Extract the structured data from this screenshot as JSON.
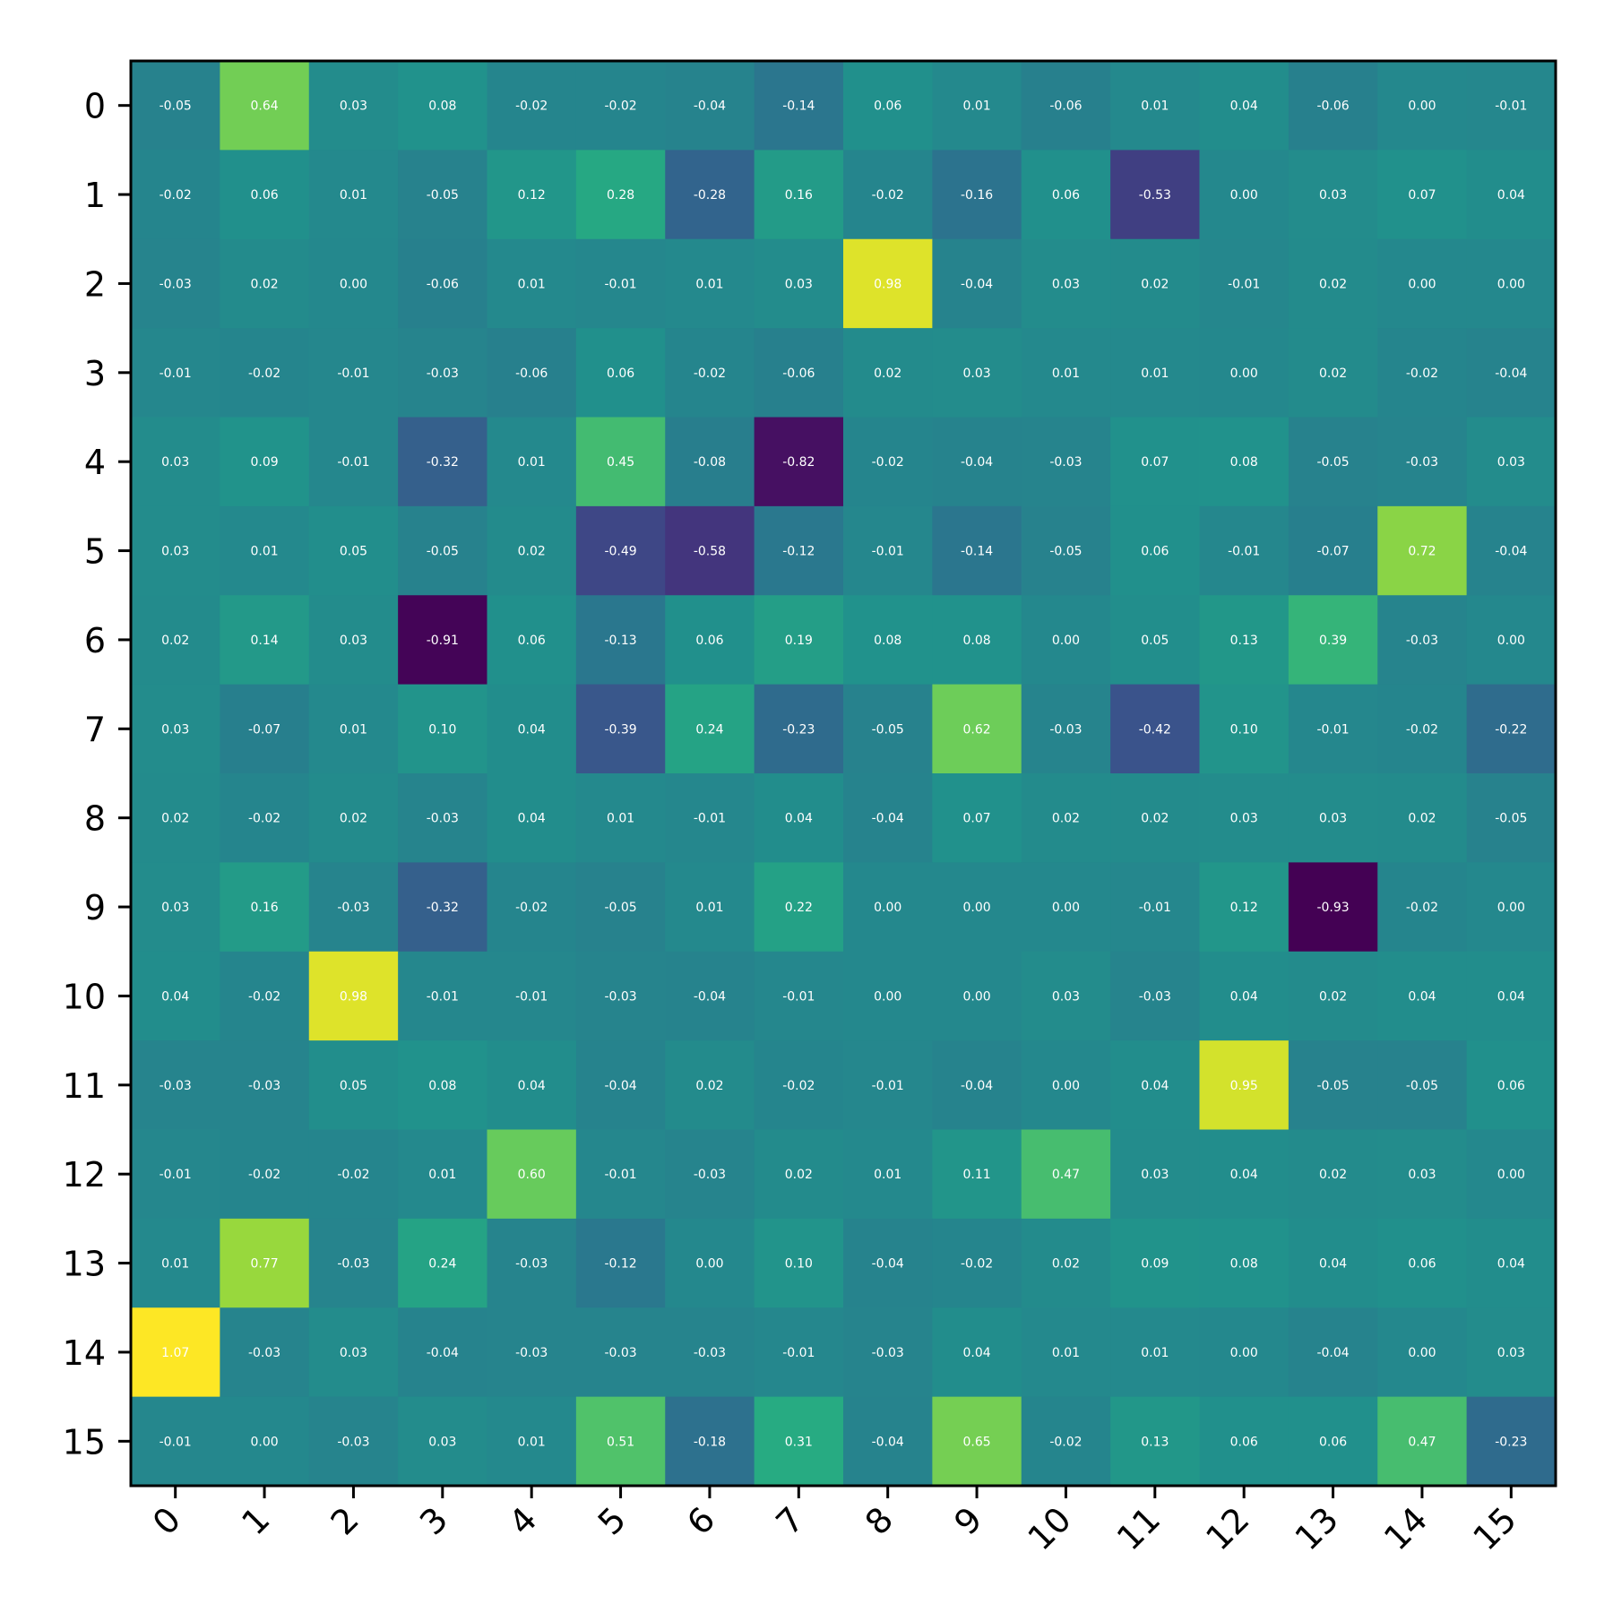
{
  "chart_data": {
    "type": "heatmap",
    "title": "",
    "xlabel": "",
    "ylabel": "",
    "colormap": "viridis",
    "value_range": [
      -0.93,
      1.07
    ],
    "x_labels": [
      "0",
      "1",
      "2",
      "3",
      "4",
      "5",
      "6",
      "7",
      "8",
      "9",
      "10",
      "11",
      "12",
      "13",
      "14",
      "15"
    ],
    "y_labels": [
      "0",
      "1",
      "2",
      "3",
      "4",
      "5",
      "6",
      "7",
      "8",
      "9",
      "10",
      "11",
      "12",
      "13",
      "14",
      "15"
    ],
    "values": [
      [
        -0.05,
        0.64,
        0.03,
        0.08,
        -0.02,
        -0.02,
        -0.04,
        -0.14,
        0.06,
        0.01,
        -0.06,
        0.01,
        0.04,
        -0.06,
        -0.0,
        -0.01
      ],
      [
        -0.02,
        0.06,
        0.01,
        -0.05,
        0.12,
        0.28,
        -0.28,
        0.16,
        -0.02,
        -0.16,
        0.06,
        -0.53,
        -0.0,
        0.03,
        0.07,
        0.04
      ],
      [
        -0.03,
        0.02,
        -0.0,
        -0.06,
        0.01,
        -0.01,
        0.01,
        0.03,
        0.98,
        -0.04,
        0.03,
        0.02,
        -0.01,
        0.02,
        -0.0,
        0.0
      ],
      [
        -0.01,
        -0.02,
        -0.01,
        -0.03,
        -0.06,
        0.06,
        -0.02,
        -0.06,
        0.02,
        0.03,
        0.01,
        0.01,
        -0.0,
        0.02,
        -0.02,
        -0.04
      ],
      [
        0.03,
        0.09,
        -0.01,
        -0.32,
        0.01,
        0.45,
        -0.08,
        -0.82,
        -0.02,
        -0.04,
        -0.03,
        0.07,
        0.08,
        -0.05,
        -0.03,
        0.03
      ],
      [
        0.03,
        0.01,
        0.05,
        -0.05,
        0.02,
        -0.49,
        -0.58,
        -0.12,
        -0.01,
        -0.14,
        -0.05,
        0.06,
        -0.01,
        -0.07,
        0.72,
        -0.04
      ],
      [
        0.02,
        0.14,
        0.03,
        -0.91,
        0.06,
        -0.13,
        0.06,
        0.19,
        0.08,
        0.08,
        0.0,
        0.05,
        0.13,
        0.39,
        -0.03,
        -0.0
      ],
      [
        0.03,
        -0.07,
        0.01,
        0.1,
        0.04,
        -0.39,
        0.24,
        -0.23,
        -0.05,
        0.62,
        -0.03,
        -0.42,
        0.1,
        -0.01,
        -0.02,
        -0.22
      ],
      [
        0.02,
        -0.02,
        0.02,
        -0.03,
        0.04,
        0.01,
        -0.01,
        0.04,
        -0.04,
        0.07,
        0.02,
        0.02,
        0.03,
        0.03,
        0.02,
        -0.05
      ],
      [
        0.03,
        0.16,
        -0.03,
        -0.32,
        -0.02,
        -0.05,
        0.01,
        0.22,
        -0.0,
        0.0,
        0.0,
        -0.01,
        0.12,
        -0.93,
        -0.02,
        -0.0
      ],
      [
        0.04,
        -0.02,
        0.98,
        -0.01,
        -0.01,
        -0.03,
        -0.04,
        -0.01,
        -0.0,
        -0.0,
        0.03,
        -0.03,
        0.04,
        0.02,
        0.04,
        0.04
      ],
      [
        -0.03,
        -0.03,
        0.05,
        0.08,
        0.04,
        -0.04,
        0.02,
        -0.02,
        -0.01,
        -0.04,
        -0.0,
        0.04,
        0.95,
        -0.05,
        -0.05,
        0.06
      ],
      [
        -0.01,
        -0.02,
        -0.02,
        0.01,
        0.6,
        -0.01,
        -0.03,
        0.02,
        0.01,
        0.11,
        0.47,
        0.03,
        0.04,
        0.02,
        0.03,
        -0.0
      ],
      [
        0.01,
        0.77,
        -0.03,
        0.24,
        -0.03,
        -0.12,
        0.0,
        0.1,
        -0.04,
        -0.02,
        0.02,
        0.09,
        0.08,
        0.04,
        0.06,
        0.04
      ],
      [
        1.07,
        -0.03,
        0.03,
        -0.04,
        -0.03,
        -0.03,
        -0.03,
        -0.01,
        -0.03,
        0.04,
        0.01,
        0.01,
        -0.0,
        -0.04,
        -0.0,
        0.03
      ],
      [
        -0.01,
        0.0,
        -0.03,
        0.03,
        0.01,
        0.51,
        -0.18,
        0.31,
        -0.04,
        0.65,
        -0.02,
        0.13,
        0.06,
        0.06,
        0.47,
        -0.23
      ]
    ],
    "annotations": "cell values printed with two decimals in white",
    "grid": false,
    "legend": "none"
  }
}
